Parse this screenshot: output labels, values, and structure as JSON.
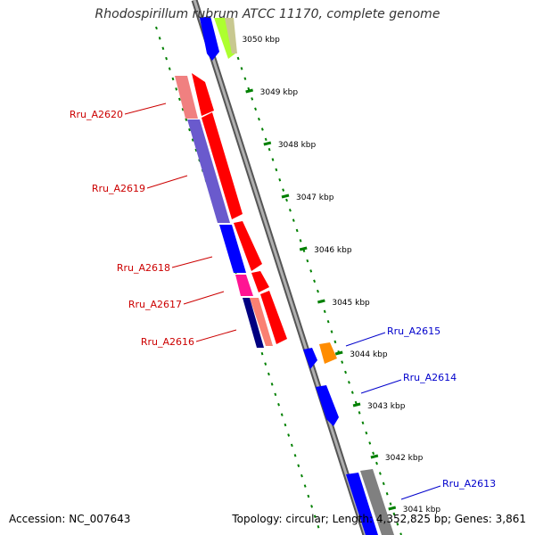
{
  "title": "Rhodospirillum rubrum ATCC 11170, complete genome",
  "accession": "Accession: NC_007643",
  "topology": "Topology: circular; Length: 4,352,825 bp; Genes: 3,861",
  "ticks": [
    "3050 kbp",
    "3049 kbp",
    "3048 kbp",
    "3047 kbp",
    "3046 kbp",
    "3045 kbp",
    "3044 kbp",
    "3043 kbp",
    "3042 kbp",
    "3041 kbp"
  ],
  "genes_left": [
    "Rru_A2620",
    "Rru_A2619",
    "Rru_A2618",
    "Rru_A2617",
    "Rru_A2616"
  ],
  "genes_right": [
    "Rru_A2615",
    "Rru_A2614",
    "Rru_A2613"
  ],
  "colors": {
    "red": "#ff0000",
    "blue": "#0000ff",
    "light_red": "#f08080",
    "slate_blue": "#6a5acd",
    "magenta": "#ff1493",
    "navy": "#000080",
    "salmon": "#fa8072",
    "orange": "#ff8c00",
    "gray": "#808080",
    "yellowgreen": "#adff2f",
    "olive": "#c8c890",
    "label_red": "#cc0000",
    "label_blue": "#0000cc",
    "tick_green": "#008000"
  }
}
